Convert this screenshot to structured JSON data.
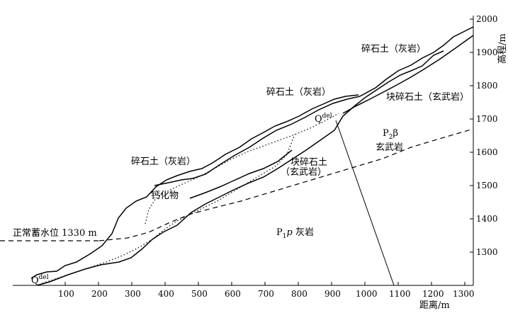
{
  "axes": {
    "x": {
      "title": "距离/m",
      "ticks": [
        "100",
        "200",
        "300",
        "400",
        "500",
        "600",
        "700",
        "800",
        "900",
        "1000",
        "1100",
        "1200",
        "1300"
      ]
    },
    "y": {
      "title": "高程/m",
      "ticks": [
        "1300",
        "1400",
        "1500",
        "1600",
        "1700",
        "1800",
        "1900",
        "2000"
      ]
    }
  },
  "labels": {
    "gravel_soil_limestone_1": "碎石土（灰岩）",
    "gravel_soil_limestone_2": "碎石土（灰岩）",
    "gravel_soil_limestone_3": "碎石土（灰岩）",
    "block_gravel_basalt_right": "块碎石土（玄武岩）",
    "block_gravel_mid_line1": "块碎石土",
    "block_gravel_mid_line2": "（玄武岩）",
    "calcified": "钙化物",
    "water_level": "正常蓄水位 1330 m",
    "qdel_top": "Q",
    "qdel_top_sup": "del",
    "qdel_bottom": "Q",
    "qdel_bottom_sup": "del",
    "p2_symbol": "P",
    "p2_sub": "2",
    "p2_beta": "β",
    "p2_name": "玄武岩",
    "p1_symbol": "P",
    "p1_sub": "1",
    "p1_p": "p",
    "p1_name": " 灰岩"
  }
}
